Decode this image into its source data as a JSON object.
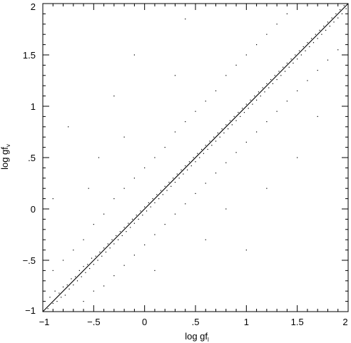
{
  "chart_data": {
    "type": "scatter",
    "title": "",
    "xlabel": {
      "base": "log gf",
      "subscript": "l"
    },
    "ylabel": {
      "base": "log gf",
      "subscript": "v"
    },
    "xlim": [
      -1,
      2
    ],
    "ylim": [
      -1,
      2
    ],
    "x_ticks": [
      -1,
      -0.5,
      0,
      0.5,
      1,
      1.5,
      2
    ],
    "x_tick_labels": [
      "−1",
      "−.5",
      "0",
      ".5",
      "1",
      "1.5",
      "2"
    ],
    "y_ticks": [
      -1,
      -0.5,
      0,
      0.5,
      1,
      1.5,
      2
    ],
    "y_tick_labels": [
      "−1",
      "−.5",
      "0",
      ".5",
      "1",
      "1.5",
      "2"
    ],
    "grid": false,
    "reference_line": {
      "x": [
        -1,
        2
      ],
      "y": [
        -1,
        2
      ]
    },
    "series": [
      {
        "points": [
          [
            -0.95,
            -0.97
          ],
          [
            -0.93,
            -0.86
          ],
          [
            -0.9,
            -0.92
          ],
          [
            -0.88,
            -0.8
          ],
          [
            -0.86,
            -0.9
          ],
          [
            -0.84,
            -0.82
          ],
          [
            -0.82,
            -0.86
          ],
          [
            -0.8,
            -0.76
          ],
          [
            -0.78,
            -0.84
          ],
          [
            -0.76,
            -0.74
          ],
          [
            -0.74,
            -0.78
          ],
          [
            -0.72,
            -0.68
          ],
          [
            -0.7,
            -0.74
          ],
          [
            -0.68,
            -0.66
          ],
          [
            -0.66,
            -0.7
          ],
          [
            -0.64,
            -0.6
          ],
          [
            -0.62,
            -0.66
          ],
          [
            -0.6,
            -0.56
          ],
          [
            -0.58,
            -0.62
          ],
          [
            -0.56,
            -0.54
          ],
          [
            -0.54,
            -0.58
          ],
          [
            -0.52,
            -0.48
          ],
          [
            -0.5,
            -0.54
          ],
          [
            -0.48,
            -0.46
          ],
          [
            -0.46,
            -0.5
          ],
          [
            -0.44,
            -0.42
          ],
          [
            -0.42,
            -0.46
          ],
          [
            -0.4,
            -0.38
          ],
          [
            -0.38,
            -0.42
          ],
          [
            -0.36,
            -0.34
          ],
          [
            -0.34,
            -0.38
          ],
          [
            -0.32,
            -0.3
          ],
          [
            -0.3,
            -0.34
          ],
          [
            -0.28,
            -0.26
          ],
          [
            -0.26,
            -0.3
          ],
          [
            -0.24,
            -0.22
          ],
          [
            -0.22,
            -0.26
          ],
          [
            -0.2,
            -0.18
          ],
          [
            -0.18,
            -0.22
          ],
          [
            -0.16,
            -0.14
          ],
          [
            -0.14,
            -0.18
          ],
          [
            -0.12,
            -0.1
          ],
          [
            -0.1,
            -0.14
          ],
          [
            -0.08,
            -0.06
          ],
          [
            -0.06,
            -0.1
          ],
          [
            -0.04,
            -0.02
          ],
          [
            -0.02,
            -0.06
          ],
          [
            0.0,
            0.02
          ],
          [
            0.02,
            -0.02
          ],
          [
            0.04,
            0.06
          ],
          [
            0.06,
            0.02
          ],
          [
            0.08,
            0.1
          ],
          [
            0.1,
            0.06
          ],
          [
            0.12,
            0.14
          ],
          [
            0.14,
            0.1
          ],
          [
            0.16,
            0.18
          ],
          [
            0.18,
            0.14
          ],
          [
            0.2,
            0.22
          ],
          [
            0.22,
            0.18
          ],
          [
            0.24,
            0.26
          ],
          [
            0.26,
            0.22
          ],
          [
            0.28,
            0.3
          ],
          [
            0.3,
            0.26
          ],
          [
            0.32,
            0.34
          ],
          [
            0.34,
            0.3
          ],
          [
            0.36,
            0.38
          ],
          [
            0.38,
            0.34
          ],
          [
            0.4,
            0.42
          ],
          [
            0.42,
            0.38
          ],
          [
            0.44,
            0.46
          ],
          [
            0.46,
            0.42
          ],
          [
            0.48,
            0.5
          ],
          [
            0.5,
            0.46
          ],
          [
            0.52,
            0.54
          ],
          [
            0.54,
            0.5
          ],
          [
            0.56,
            0.58
          ],
          [
            0.58,
            0.54
          ],
          [
            0.6,
            0.62
          ],
          [
            0.62,
            0.58
          ],
          [
            0.64,
            0.66
          ],
          [
            0.66,
            0.62
          ],
          [
            0.68,
            0.7
          ],
          [
            0.7,
            0.66
          ],
          [
            0.72,
            0.74
          ],
          [
            0.74,
            0.7
          ],
          [
            0.76,
            0.78
          ],
          [
            0.78,
            0.74
          ],
          [
            0.8,
            0.82
          ],
          [
            0.82,
            0.78
          ],
          [
            0.84,
            0.86
          ],
          [
            0.86,
            0.82
          ],
          [
            0.88,
            0.9
          ],
          [
            0.9,
            0.86
          ],
          [
            0.92,
            0.94
          ],
          [
            0.94,
            0.9
          ],
          [
            0.96,
            0.98
          ],
          [
            0.98,
            0.94
          ],
          [
            1.0,
            1.02
          ],
          [
            1.02,
            0.98
          ],
          [
            1.04,
            1.06
          ],
          [
            1.06,
            1.02
          ],
          [
            1.08,
            1.1
          ],
          [
            1.1,
            1.06
          ],
          [
            1.12,
            1.14
          ],
          [
            1.14,
            1.1
          ],
          [
            1.16,
            1.18
          ],
          [
            1.18,
            1.14
          ],
          [
            1.2,
            1.22
          ],
          [
            1.22,
            1.18
          ],
          [
            1.24,
            1.26
          ],
          [
            1.26,
            1.22
          ],
          [
            1.28,
            1.3
          ],
          [
            1.3,
            1.26
          ],
          [
            1.32,
            1.34
          ],
          [
            1.34,
            1.3
          ],
          [
            1.36,
            1.38
          ],
          [
            1.38,
            1.34
          ],
          [
            1.4,
            1.42
          ],
          [
            1.42,
            1.38
          ],
          [
            1.44,
            1.46
          ],
          [
            1.46,
            1.42
          ],
          [
            1.48,
            1.5
          ],
          [
            1.5,
            1.46
          ],
          [
            1.52,
            1.54
          ],
          [
            1.54,
            1.5
          ],
          [
            1.56,
            1.58
          ],
          [
            1.58,
            1.54
          ],
          [
            1.6,
            1.62
          ],
          [
            1.62,
            1.58
          ],
          [
            1.64,
            1.66
          ],
          [
            1.66,
            1.62
          ],
          [
            1.68,
            1.7
          ],
          [
            1.7,
            1.66
          ],
          [
            1.72,
            1.74
          ],
          [
            1.74,
            1.7
          ],
          [
            1.76,
            1.78
          ],
          [
            1.78,
            1.74
          ],
          [
            1.8,
            1.82
          ],
          [
            1.82,
            1.78
          ],
          [
            1.84,
            1.86
          ],
          [
            1.86,
            1.82
          ],
          [
            1.88,
            1.9
          ],
          [
            1.9,
            1.86
          ],
          [
            1.92,
            1.94
          ],
          [
            1.94,
            1.9
          ],
          [
            1.96,
            1.98
          ],
          [
            1.98,
            1.95
          ],
          [
            -0.9,
            -0.6
          ],
          [
            -0.8,
            -0.5
          ],
          [
            -0.7,
            -0.4
          ],
          [
            -0.6,
            -0.3
          ],
          [
            -0.5,
            -0.15
          ],
          [
            -0.4,
            -0.05
          ],
          [
            -0.3,
            0.1
          ],
          [
            -0.2,
            0.2
          ],
          [
            -0.1,
            0.3
          ],
          [
            0.0,
            0.4
          ],
          [
            0.1,
            0.5
          ],
          [
            0.2,
            0.6
          ],
          [
            0.3,
            0.75
          ],
          [
            0.4,
            0.85
          ],
          [
            0.5,
            0.95
          ],
          [
            0.6,
            1.05
          ],
          [
            0.7,
            1.15
          ],
          [
            0.8,
            1.3
          ],
          [
            0.9,
            1.4
          ],
          [
            1.0,
            1.5
          ],
          [
            1.1,
            1.6
          ],
          [
            1.2,
            1.7
          ],
          [
            1.3,
            1.8
          ],
          [
            1.4,
            1.9
          ],
          [
            -0.6,
            -0.9
          ],
          [
            -0.5,
            -0.8
          ],
          [
            -0.4,
            -0.75
          ],
          [
            -0.3,
            -0.65
          ],
          [
            -0.2,
            -0.55
          ],
          [
            -0.1,
            -0.45
          ],
          [
            0.0,
            -0.35
          ],
          [
            0.1,
            -0.25
          ],
          [
            0.2,
            -0.15
          ],
          [
            0.3,
            -0.05
          ],
          [
            0.4,
            0.05
          ],
          [
            0.5,
            0.15
          ],
          [
            0.6,
            0.25
          ],
          [
            0.7,
            0.35
          ],
          [
            0.8,
            0.45
          ],
          [
            0.9,
            0.55
          ],
          [
            1.0,
            0.65
          ],
          [
            1.1,
            0.75
          ],
          [
            1.2,
            0.85
          ],
          [
            1.3,
            0.95
          ],
          [
            1.4,
            1.05
          ],
          [
            1.5,
            1.15
          ],
          [
            1.6,
            1.25
          ],
          [
            1.7,
            1.35
          ],
          [
            1.8,
            1.45
          ],
          [
            1.9,
            1.55
          ],
          [
            -0.75,
            0.8
          ],
          [
            -0.3,
            1.1
          ],
          [
            -0.2,
            0.7
          ],
          [
            -0.55,
            0.2
          ],
          [
            -0.1,
            1.5
          ],
          [
            0.4,
            1.85
          ],
          [
            0.1,
            -0.6
          ],
          [
            0.6,
            -0.3
          ],
          [
            1.2,
            0.2
          ],
          [
            1.5,
            0.5
          ],
          [
            1.0,
            -0.4
          ],
          [
            0.8,
            0.0
          ],
          [
            -0.9,
            0.1
          ],
          [
            1.7,
            0.9
          ],
          [
            0.3,
            1.3
          ],
          [
            -0.45,
            0.5
          ]
        ]
      }
    ]
  }
}
